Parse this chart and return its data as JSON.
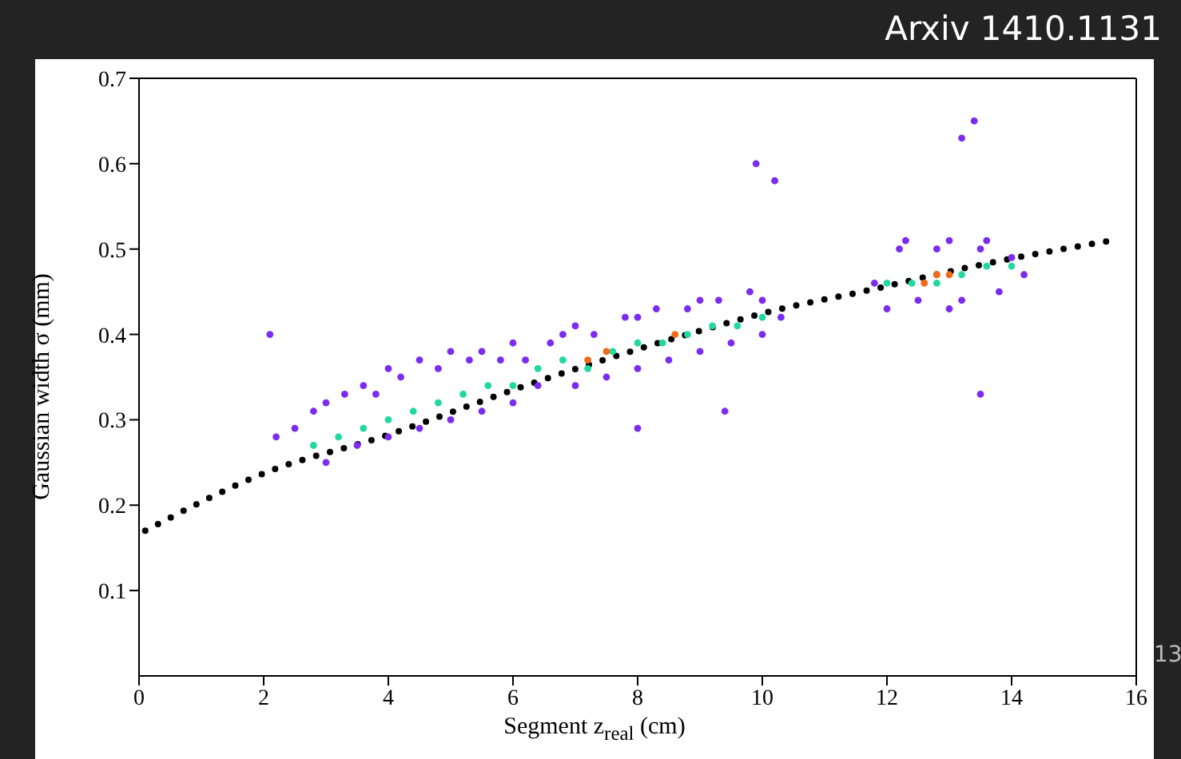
{
  "chart_data": {
    "type": "scatter",
    "xlabel": "Segment z$_{real}$ (cm)",
    "ylabel": "Gaussian width σ (mm)",
    "annotations": [
      "Arxiv 1410.1131",
      "13"
    ],
    "xlim": [
      0,
      16
    ],
    "xticks": [
      0,
      2,
      4,
      6,
      8,
      10,
      12,
      14,
      16
    ],
    "ylim": [
      0,
      0.7
    ],
    "yticks": [
      0.1,
      0.2,
      0.3,
      0.4,
      0.5,
      0.6,
      0.7
    ],
    "marker": "circle",
    "series": [
      {
        "color": "#7a2cf0",
        "x": [
          2.2,
          2.5,
          2.8,
          3.0,
          3.0,
          3.3,
          3.5,
          3.6,
          3.8,
          4.0,
          4.0,
          4.2,
          4.5,
          4.5,
          4.8,
          5.0,
          5.0,
          5.3,
          5.5,
          5.5,
          5.8,
          6.0,
          6.0,
          6.2,
          6.4,
          6.6,
          6.8,
          7.0,
          7.0,
          7.3,
          7.5,
          7.8,
          8.0,
          8.0,
          8.3,
          8.5,
          8.8,
          9.0,
          9.0,
          9.3,
          9.5,
          9.8,
          10.0,
          10.0,
          10.3,
          11.8,
          12.0,
          12.2,
          12.5,
          12.8,
          13.0,
          13.2,
          13.5,
          13.8,
          14.0,
          14.2,
          12.3,
          13.0,
          13.6,
          2.1,
          8.0,
          9.9,
          10.2,
          13.2,
          13.4,
          13.5,
          9.4
        ],
        "values": [
          0.28,
          0.29,
          0.31,
          0.25,
          0.32,
          0.33,
          0.27,
          0.34,
          0.33,
          0.28,
          0.36,
          0.35,
          0.29,
          0.37,
          0.36,
          0.3,
          0.38,
          0.37,
          0.31,
          0.38,
          0.37,
          0.32,
          0.39,
          0.37,
          0.34,
          0.39,
          0.4,
          0.34,
          0.41,
          0.4,
          0.35,
          0.42,
          0.36,
          0.42,
          0.43,
          0.37,
          0.43,
          0.38,
          0.44,
          0.44,
          0.39,
          0.45,
          0.4,
          0.44,
          0.42,
          0.46,
          0.43,
          0.5,
          0.44,
          0.5,
          0.51,
          0.44,
          0.5,
          0.45,
          0.49,
          0.47,
          0.51,
          0.43,
          0.51,
          0.4,
          0.29,
          0.6,
          0.58,
          0.63,
          0.65,
          0.33,
          0.31
        ]
      },
      {
        "color": "#20d8a0",
        "x": [
          2.8,
          3.2,
          3.6,
          4.0,
          4.4,
          4.8,
          5.2,
          5.6,
          6.0,
          6.4,
          6.8,
          7.2,
          7.6,
          8.0,
          8.4,
          8.8,
          9.2,
          9.6,
          10.0,
          12.0,
          12.4,
          12.8,
          13.2,
          13.6,
          14.0
        ],
        "values": [
          0.27,
          0.28,
          0.29,
          0.3,
          0.31,
          0.32,
          0.33,
          0.34,
          0.34,
          0.36,
          0.37,
          0.36,
          0.38,
          0.39,
          0.39,
          0.4,
          0.41,
          0.41,
          0.42,
          0.46,
          0.46,
          0.46,
          0.47,
          0.48,
          0.48
        ]
      },
      {
        "color": "#f06a1a",
        "x": [
          7.2,
          7.5,
          8.6,
          12.6,
          12.8,
          13.0
        ],
        "values": [
          0.37,
          0.38,
          0.4,
          0.46,
          0.47,
          0.47
        ]
      },
      {
        "type": "line",
        "color": "#000000",
        "marker": "none",
        "line_style": "dotted",
        "x": [
          0.1,
          2.1,
          3.9,
          6.2,
          8.8,
          10.3,
          11.6,
          13.4,
          15.6
        ],
        "values": [
          0.17,
          0.24,
          0.28,
          0.34,
          0.4,
          0.43,
          0.45,
          0.48,
          0.51
        ]
      }
    ]
  }
}
